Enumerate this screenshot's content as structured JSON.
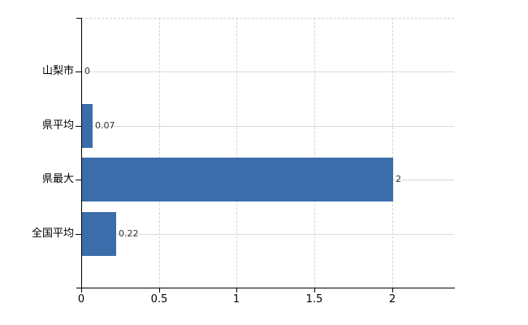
{
  "chart_data": {
    "type": "bar",
    "orientation": "horizontal",
    "title": "",
    "xlabel": "",
    "ylabel": "",
    "categories": [
      "山梨市",
      "県平均",
      "県最大",
      "全国平均"
    ],
    "values": [
      0,
      0.07,
      2,
      0.22
    ],
    "value_labels": [
      "0",
      "0.07",
      "2",
      "0.22"
    ],
    "x_tick_labels": [
      "0",
      "0.5",
      "1",
      "1.5",
      "2"
    ],
    "x_tick_values": [
      0,
      0.5,
      1,
      1.5,
      2
    ],
    "xlim": [
      0,
      2.4
    ],
    "grid": true,
    "legend_position": "none",
    "colors": {
      "bar": "#3c6dab",
      "axis": "#000000",
      "grid_horizontal": "#d4dcd4",
      "grid_vertical": "#d8d2d8",
      "plot_top_border": "#d3d3d3",
      "category_label": "#000000",
      "value_label": "#333333",
      "background": "#ffffff"
    }
  }
}
